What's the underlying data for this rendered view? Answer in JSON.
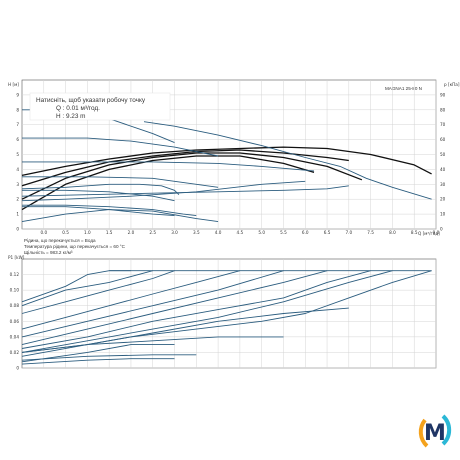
{
  "chart_data": [
    {
      "type": "line",
      "title": "MAGNA1 25-80 N",
      "ylabel_left": "H [м]",
      "ylabel_right": "p [кПа]",
      "xlabel": "Q [м³/год]",
      "xlim": [
        -0.5,
        9.0
      ],
      "ylim": [
        0,
        10
      ],
      "y2lim": [
        0,
        100
      ],
      "x_ticks": [
        "0.0",
        "0.5",
        "1.0",
        "1.5",
        "2.0",
        "2.5",
        "3.0",
        "3.5",
        "4.0",
        "4.5",
        "5.0",
        "5.5",
        "6.0",
        "6.5",
        "7.0",
        "7.5",
        "8.0",
        "8.5",
        "9.0"
      ],
      "y_ticks": [
        "0",
        "1",
        "2",
        "3",
        "4",
        "5",
        "6",
        "7",
        "8",
        "9"
      ],
      "y2_ticks": [
        "0",
        "10",
        "20",
        "30",
        "40",
        "50",
        "60",
        "70",
        "80",
        "90"
      ],
      "grid": true,
      "tooltip": {
        "line1": "Натисніть, щоб указати робочу точку",
        "line2": "Q : 0.01 м³/год.",
        "line3": "H : 9.23 m"
      },
      "notes": [
        "Рідина, що перекачується = Вода",
        "Температура рідини, що перекачується = 60 °C",
        "Щільність = 983.2 кг/м³"
      ],
      "series": [
        {
          "x": [
            -0.5,
            0.5,
            1.5,
            2.5,
            3.5,
            4.5,
            5.5,
            6.5,
            7.5,
            8.5,
            8.9
          ],
          "y": [
            3.6,
            4.2,
            4.7,
            5.1,
            5.3,
            5.4,
            5.5,
            5.4,
            5.0,
            4.3,
            3.7
          ],
          "bold": true
        },
        {
          "x": [
            -0.5,
            0.5,
            1.5,
            2.5,
            3.5,
            4.5,
            5.5,
            6.5,
            7.0
          ],
          "y": [
            2.9,
            3.8,
            4.5,
            4.9,
            5.2,
            5.3,
            5.1,
            4.8,
            4.6
          ],
          "bold": true
        },
        {
          "x": [
            -0.5,
            0.5,
            1.5,
            2.5,
            3.5,
            4.5,
            5.5,
            6.5,
            7.3
          ],
          "y": [
            2.0,
            3.4,
            4.3,
            4.8,
            5.1,
            5.1,
            4.8,
            4.2,
            3.3
          ],
          "bold": true
        },
        {
          "x": [
            -0.5,
            0.5,
            1.5,
            2.5,
            3.5,
            4.5,
            5.5,
            6.2
          ],
          "y": [
            1.3,
            3.0,
            4.0,
            4.6,
            4.9,
            4.9,
            4.4,
            3.8
          ],
          "bold": true
        },
        {
          "x": [
            -0.5,
            -0.3,
            0.5,
            1.5,
            2.5,
            3.0
          ],
          "y": [
            8.0,
            8.0,
            7.8,
            7.4,
            6.4,
            5.8
          ],
          "bold": false
        },
        {
          "x": [
            2.3,
            3.0,
            4.0,
            5.0,
            6.0,
            6.8,
            7.4,
            8.0,
            8.9
          ],
          "y": [
            7.2,
            6.9,
            6.3,
            5.6,
            4.8,
            4.2,
            3.4,
            2.8,
            2.0
          ],
          "bold": false
        },
        {
          "x": [
            -0.5,
            0.3,
            1.0,
            2.0,
            3.0,
            4.0
          ],
          "y": [
            6.1,
            6.1,
            6.1,
            5.9,
            5.5,
            4.9
          ],
          "bold": false
        },
        {
          "x": [
            -0.5,
            1.0,
            2.5,
            4.0,
            5.0,
            6.2
          ],
          "y": [
            4.5,
            4.5,
            4.5,
            4.4,
            4.2,
            3.9
          ],
          "bold": false
        },
        {
          "x": [
            -0.5,
            1.0,
            2.5,
            3.5,
            4.0
          ],
          "y": [
            3.5,
            3.5,
            3.4,
            3.0,
            2.8
          ],
          "bold": false
        },
        {
          "x": [
            -0.5,
            0.5,
            1.5,
            2.5,
            3.0
          ],
          "y": [
            2.6,
            2.6,
            2.5,
            2.2,
            1.9
          ],
          "bold": false
        },
        {
          "x": [
            -0.5,
            0.5,
            1.5,
            2.5,
            3.2,
            3.5
          ],
          "y": [
            1.6,
            1.6,
            1.5,
            1.3,
            1.0,
            0.9
          ],
          "bold": false
        },
        {
          "x": [
            -0.5,
            0.5,
            1.5,
            2.2,
            2.7,
            3.0,
            3.1
          ],
          "y": [
            2.7,
            2.8,
            3.0,
            3.0,
            2.9,
            2.6,
            2.3
          ],
          "bold": false
        },
        {
          "x": [
            -0.5,
            1.0,
            2.5,
            4.0,
            5.5,
            6.5,
            7.0
          ],
          "y": [
            2.2,
            2.3,
            2.4,
            2.5,
            2.6,
            2.7,
            2.9
          ],
          "bold": false
        },
        {
          "x": [
            -0.5,
            0.5,
            2.0,
            3.5,
            5.0,
            6.0
          ],
          "y": [
            1.9,
            2.0,
            2.2,
            2.5,
            3.0,
            3.2
          ],
          "bold": false
        },
        {
          "x": [
            -0.5,
            0.5,
            1.5,
            2.5,
            3.0
          ],
          "y": [
            1.5,
            1.5,
            1.3,
            1.0,
            0.9
          ],
          "bold": false
        },
        {
          "x": [
            -0.5,
            0.5,
            1.5,
            2.5,
            3.5,
            4.0
          ],
          "y": [
            0.5,
            1.0,
            1.3,
            1.2,
            0.7,
            0.5
          ],
          "bold": false
        }
      ]
    },
    {
      "type": "line",
      "ylabel": "P1 [kW]",
      "xlim": [
        -0.5,
        9.0
      ],
      "ylim": [
        0,
        0.14
      ],
      "y_ticks": [
        "0",
        "0.02",
        "0.04",
        "0.06",
        "0.08",
        "0.10",
        "0.12"
      ],
      "grid": true,
      "series": [
        {
          "x": [
            -0.5,
            1.0,
            2.0,
            3.5,
            5.0,
            6.0,
            7.0,
            8.0,
            8.9
          ],
          "y": [
            0.02,
            0.03,
            0.04,
            0.05,
            0.06,
            0.07,
            0.09,
            0.11,
            0.125
          ]
        },
        {
          "x": [
            -0.5,
            1.0,
            2.5,
            4.0,
            5.5,
            7.0,
            8.0
          ],
          "y": [
            0.02,
            0.035,
            0.05,
            0.065,
            0.085,
            0.11,
            0.125
          ]
        },
        {
          "x": [
            -0.5,
            1.0,
            2.5,
            4.0,
            5.5,
            6.5,
            7.5
          ],
          "y": [
            0.025,
            0.04,
            0.06,
            0.075,
            0.09,
            0.11,
            0.125
          ]
        },
        {
          "x": [
            -0.5,
            1.0,
            2.5,
            4.0,
            5.5,
            6.5
          ],
          "y": [
            0.03,
            0.05,
            0.07,
            0.09,
            0.11,
            0.125
          ]
        },
        {
          "x": [
            -0.5,
            1.0,
            2.5,
            4.0,
            5.5
          ],
          "y": [
            0.04,
            0.06,
            0.08,
            0.1,
            0.125
          ]
        },
        {
          "x": [
            -0.5,
            0.5,
            1.5,
            2.5,
            3.5,
            4.5
          ],
          "y": [
            0.05,
            0.065,
            0.08,
            0.095,
            0.11,
            0.125
          ]
        },
        {
          "x": [
            -0.5,
            0.5,
            1.5,
            2.5,
            3.0
          ],
          "y": [
            0.07,
            0.085,
            0.1,
            0.115,
            0.125
          ]
        },
        {
          "x": [
            -0.5,
            0.5,
            1.5,
            2.5
          ],
          "y": [
            0.08,
            0.1,
            0.11,
            0.125
          ]
        },
        {
          "x": [
            -0.5,
            0.5,
            1.0,
            1.5,
            2.0
          ],
          "y": [
            0.085,
            0.105,
            0.12,
            0.125,
            0.125
          ]
        },
        {
          "x": [
            1.5,
            3.5,
            5.5,
            7.5,
            8.9
          ],
          "y": [
            0.125,
            0.125,
            0.125,
            0.125,
            0.125
          ]
        },
        {
          "x": [
            -0.5,
            1.0,
            2.5,
            4.0,
            5.5,
            7.0
          ],
          "y": [
            0.015,
            0.03,
            0.045,
            0.06,
            0.07,
            0.077
          ]
        },
        {
          "x": [
            -0.5,
            1.0,
            2.5,
            4.0,
            5.5
          ],
          "y": [
            0.02,
            0.03,
            0.035,
            0.04,
            0.04
          ]
        },
        {
          "x": [
            -0.5,
            1.0,
            2.5,
            3.5
          ],
          "y": [
            0.01,
            0.015,
            0.017,
            0.017
          ]
        },
        {
          "x": [
            -0.5,
            1.0,
            2.0,
            3.0
          ],
          "y": [
            0.005,
            0.01,
            0.012,
            0.012
          ]
        },
        {
          "x": [
            -0.5,
            1.0,
            2.0,
            3.0
          ],
          "y": [
            0.008,
            0.02,
            0.03,
            0.03
          ]
        }
      ]
    }
  ],
  "brand": {
    "logo_letter": "M",
    "colors": {
      "navy": "#1f3565",
      "orange": "#f4a21d",
      "cyan": "#2bb8d6"
    }
  },
  "colors": {
    "curve": "#2c5d7f",
    "bold_curve": "#111111",
    "grid": "#d4d4d4",
    "axis": "#555555",
    "text": "#333333"
  }
}
